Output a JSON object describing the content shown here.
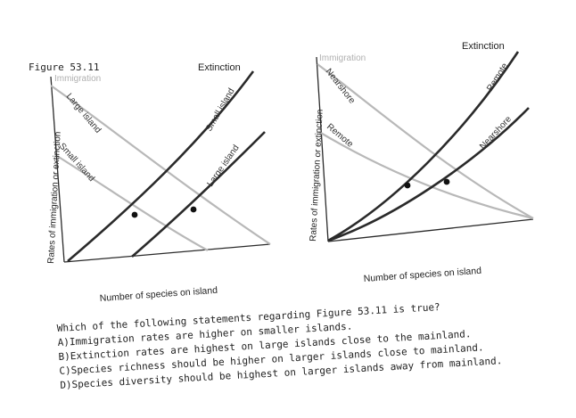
{
  "figure_label": "Figure 53.11",
  "panels": [
    {
      "id": "left",
      "y_axis_label": "Rates of immigration or extinction",
      "x_axis_label": "Number of species on island",
      "header_labels": {
        "immigration": "Immigration",
        "extinction": "Extinction"
      },
      "curve_labels": {
        "immigration_1": "Large island",
        "immigration_2": "Small island",
        "extinction_1": "Small island",
        "extinction_2": "Large island"
      }
    },
    {
      "id": "right",
      "y_axis_label": "Rates of immigration or extinction",
      "x_axis_label": "Number of species on island",
      "header_labels": {
        "immigration": "Immigration",
        "extinction": "Extinction"
      },
      "curve_labels": {
        "immigration_1": "Nearshore",
        "immigration_2": "Remote",
        "extinction_1": "Remote",
        "extinction_2": "Nearshore"
      }
    }
  ],
  "question": {
    "stem": "Which of the following statements regarding Figure 53.11 is true?",
    "options": [
      "A)Immigration rates are higher on smaller islands.",
      "B)Extinction rates are highest on large islands close to the mainland.",
      "C)Species richness should be higher on larger islands close to mainland.",
      "D)Species diversity should be highest on larger islands away from mainland."
    ]
  },
  "colors": {
    "immigration_curve": "#b8b8b8",
    "extinction_curve": "#2a2a2a",
    "axis": "#2a2a2a",
    "text": "#222222",
    "faint_label": "#b0b0b0"
  }
}
